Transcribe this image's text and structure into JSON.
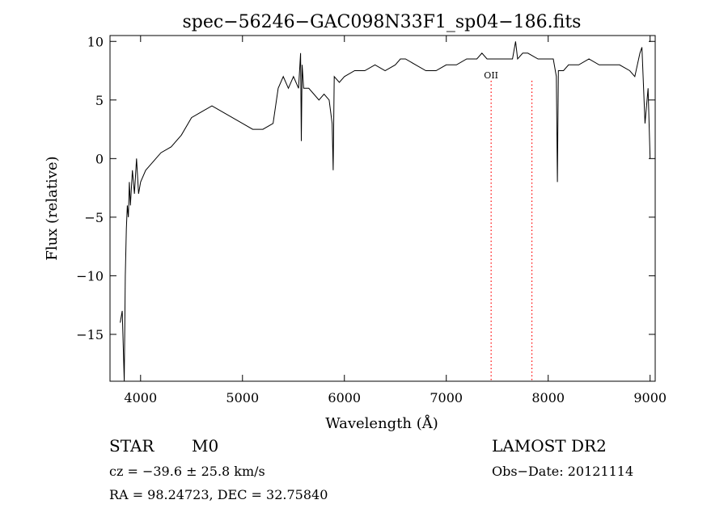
{
  "chart_data": {
    "type": "line",
    "title": "spec−56246−GAC098N33F1_sp04−186.fits",
    "xlabel": "Wavelength (Å)",
    "ylabel": "Flux (relative)",
    "xlim": [
      3700,
      9050
    ],
    "ylim": [
      -19,
      10.5
    ],
    "xticks": [
      4000,
      5000,
      6000,
      7000,
      8000,
      9000
    ],
    "yticks": [
      10,
      5,
      0,
      -5,
      -10,
      -15
    ],
    "ytick_labels": [
      "10",
      "5",
      "0",
      "−5",
      "−10",
      "−15"
    ],
    "grid": false,
    "line_color": "#000000",
    "marker_color": "#ff0000",
    "markers": [
      {
        "x": 7440,
        "label": "OII"
      },
      {
        "x": 7840,
        "label": ""
      }
    ],
    "series": [
      {
        "x": [
          3800,
          3820,
          3840,
          3850,
          3860,
          3870,
          3880,
          3890,
          3900,
          3920,
          3940,
          3960,
          3980,
          4000,
          4050,
          4100,
          4150,
          4200,
          4300,
          4400,
          4500,
          4600,
          4700,
          4800,
          4900,
          5000,
          5100,
          5200,
          5300,
          5350,
          5400,
          5450,
          5500,
          5550,
          5570,
          5577,
          5585,
          5600,
          5650,
          5700,
          5750,
          5800,
          5850,
          5880,
          5890,
          5900,
          5950,
          6000,
          6100,
          6200,
          6300,
          6400,
          6500,
          6550,
          6600,
          6700,
          6800,
          6900,
          7000,
          7100,
          7200,
          7300,
          7350,
          7400,
          7500,
          7600,
          7650,
          7680,
          7700,
          7750,
          7800,
          7900,
          8000,
          8050,
          8080,
          8090,
          8100,
          8150,
          8200,
          8300,
          8400,
          8500,
          8600,
          8700,
          8800,
          8850,
          8900,
          8920,
          8950,
          8980,
          9000
        ],
        "y": [
          -14,
          -13,
          -19,
          -10,
          -6,
          -4,
          -5,
          -2,
          -4,
          -1,
          -3,
          0,
          -3,
          -2,
          -1,
          -0.5,
          0,
          0.5,
          1,
          2,
          3.5,
          4,
          4.5,
          4,
          3.5,
          3,
          2.5,
          2.5,
          3,
          6,
          7,
          6,
          7,
          6,
          9,
          1.5,
          8,
          6,
          6,
          5.5,
          5,
          5.5,
          5,
          3,
          -1,
          7,
          6.5,
          7,
          7.5,
          7.5,
          8,
          7.5,
          8,
          8.5,
          8.5,
          8,
          7.5,
          7.5,
          8,
          8,
          8.5,
          8.5,
          9,
          8.5,
          8.5,
          8.5,
          8.5,
          10,
          8.5,
          9,
          9,
          8.5,
          8.5,
          8.5,
          7,
          -2,
          7.5,
          7.5,
          8,
          8,
          8.5,
          8,
          8,
          8,
          7.5,
          7,
          9,
          9.5,
          3,
          6,
          0
        ]
      }
    ]
  },
  "info": {
    "object_class": "STAR",
    "subclass": "M0",
    "survey": "LAMOST DR2",
    "cz": "cz = −39.6 ± 25.8 km/s",
    "obs_date": "Obs−Date: 20121114",
    "coords": "RA =  98.24723, DEC =  32.75840"
  }
}
